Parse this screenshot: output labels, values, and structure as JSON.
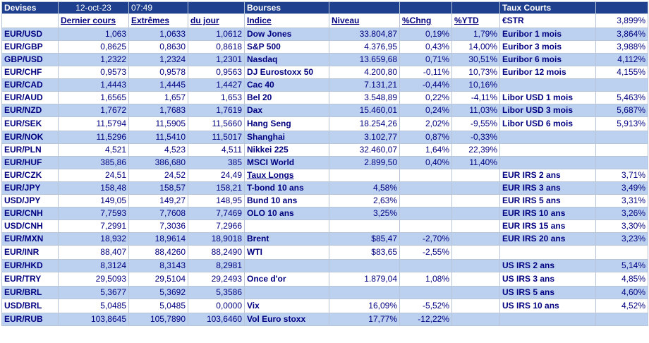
{
  "header": {
    "devises": "Devises",
    "date": "12-oct-23",
    "time": "07:49",
    "bourses": "Bourses",
    "taux_courts": "Taux Courts"
  },
  "columns": {
    "dernier": "Dernier cours",
    "extremes": "Extrêmes",
    "du_jour": "du jour",
    "indice": "Indice",
    "niveau": "Niveau",
    "chng": "%Chng",
    "ytd": "%YTD",
    "estr_label": "€STR",
    "estr_value": "3,899%"
  },
  "rows": [
    [
      "EUR/USD",
      "1,063",
      "1,0633",
      "1,0612",
      "Dow Jones",
      "33.804,87",
      "0,19%",
      "1,79%",
      "Euribor 1 mois",
      "3,864%"
    ],
    [
      "EUR/GBP",
      "0,8625",
      "0,8630",
      "0,8618",
      "S&P 500",
      "4.376,95",
      "0,43%",
      "14,00%",
      "Euribor 3 mois",
      "3,988%"
    ],
    [
      "GBP/USD",
      "1,2322",
      "1,2324",
      "1,2301",
      "Nasdaq",
      "13.659,68",
      "0,71%",
      "30,51%",
      "Euribor 6 mois",
      "4,112%"
    ],
    [
      "EUR/CHF",
      "0,9573",
      "0,9578",
      "0,9563",
      "DJ Eurostoxx 50",
      "4.200,80",
      "-0,11%",
      "10,73%",
      "Euribor 12 mois",
      "4,155%"
    ],
    [
      "EUR/CAD",
      "1,4443",
      "1,4445",
      "1,4427",
      "Cac 40",
      "7.131,21",
      "-0,44%",
      "10,16%",
      "",
      ""
    ],
    [
      "EUR/AUD",
      "1,6565",
      "1,657",
      "1,653",
      "Bel 20",
      "3.548,89",
      "0,22%",
      "-4,11%",
      "Libor USD 1 mois",
      "5,463%"
    ],
    [
      "EUR/NZD",
      "1,7672",
      "1,7683",
      "1,7619",
      "Dax",
      "15.460,01",
      "0,24%",
      "11,03%",
      "Libor USD 3 mois",
      "5,687%"
    ],
    [
      "EUR/SEK",
      "11,5794",
      "11,5905",
      "11,5660",
      "Hang Seng",
      "18.254,26",
      "2,02%",
      "-9,55%",
      "Libor USD 6 mois",
      "5,913%"
    ],
    [
      "EUR/NOK",
      "11,5296",
      "11,5410",
      "11,5017",
      "Shanghai",
      "3.102,77",
      "0,87%",
      "-0,33%",
      "",
      ""
    ],
    [
      "EUR/PLN",
      "4,521",
      "4,523",
      "4,511",
      "Nikkei 225",
      "32.460,07",
      "1,64%",
      "22,39%",
      "",
      ""
    ],
    [
      "EUR/HUF",
      "385,86",
      "386,680",
      "385",
      "MSCI World",
      "2.899,50",
      "0,40%",
      "11,40%",
      "",
      ""
    ],
    [
      "EUR/CZK",
      "24,51",
      "24,52",
      "24,49",
      "Taux Longs",
      "",
      "",
      "",
      "EUR IRS 2 ans",
      "3,71%"
    ],
    [
      "EUR/JPY",
      "158,48",
      "158,57",
      "158,21",
      "T-bond 10 ans",
      "4,58%",
      "",
      "",
      "EUR IRS 3 ans",
      "3,49%"
    ],
    [
      "USD/JPY",
      "149,05",
      "149,27",
      "148,95",
      "Bund 10 ans",
      "2,63%",
      "",
      "",
      "EUR IRS 5 ans",
      "3,31%"
    ],
    [
      "EUR/CNH",
      "7,7593",
      "7,7608",
      "7,7469",
      "OLO 10 ans",
      "3,25%",
      "",
      "",
      "EUR IRS 10 ans",
      "3,26%"
    ],
    [
      "USD/CNH",
      "7,2991",
      "7,3036",
      "7,2966",
      "",
      "",
      "",
      "",
      "EUR IRS 15 ans",
      "3,30%"
    ],
    [
      "EUR/MXN",
      "18,932",
      "18,9614",
      "18,9018",
      "Brent",
      "$85,47",
      "-2,70%",
      "",
      "EUR IRS 20 ans",
      "3,23%"
    ],
    [
      "EUR/INR",
      "88,407",
      "88,4260",
      "88,2490",
      "WTI",
      "$83,65",
      "-2,55%",
      "",
      "",
      ""
    ],
    [
      "EUR/HKD",
      "8,3124",
      "8,3143",
      "8,2981",
      "",
      "",
      "",
      "",
      "US IRS 2 ans",
      "5,14%"
    ],
    [
      "EUR/TRY",
      "29,5093",
      "29,5104",
      "29,2493",
      "Once d'or",
      "1.879,04",
      "1,08%",
      "",
      "US IRS 3 ans",
      "4,85%"
    ],
    [
      "EUR/BRL",
      "5,3677",
      "5,3692",
      "5,3586",
      "",
      "",
      "",
      "",
      "US IRS 5 ans",
      "4,60%"
    ],
    [
      "USD/BRL",
      "5,0485",
      "5,0485",
      "0,0000",
      "Vix",
      "16,09%",
      "-5,52%",
      "",
      "US IRS 10 ans",
      "4,52%"
    ],
    [
      "EUR/RUB",
      "103,8645",
      "105,7890",
      "103,6460",
      "Vol Euro stoxx",
      "17,77%",
      "-12,22%",
      "",
      "",
      " "
    ]
  ],
  "colors": {
    "header_bg": "#1f3f8f",
    "alt_row_bg": "#bcd0f0",
    "text": "#000080"
  }
}
